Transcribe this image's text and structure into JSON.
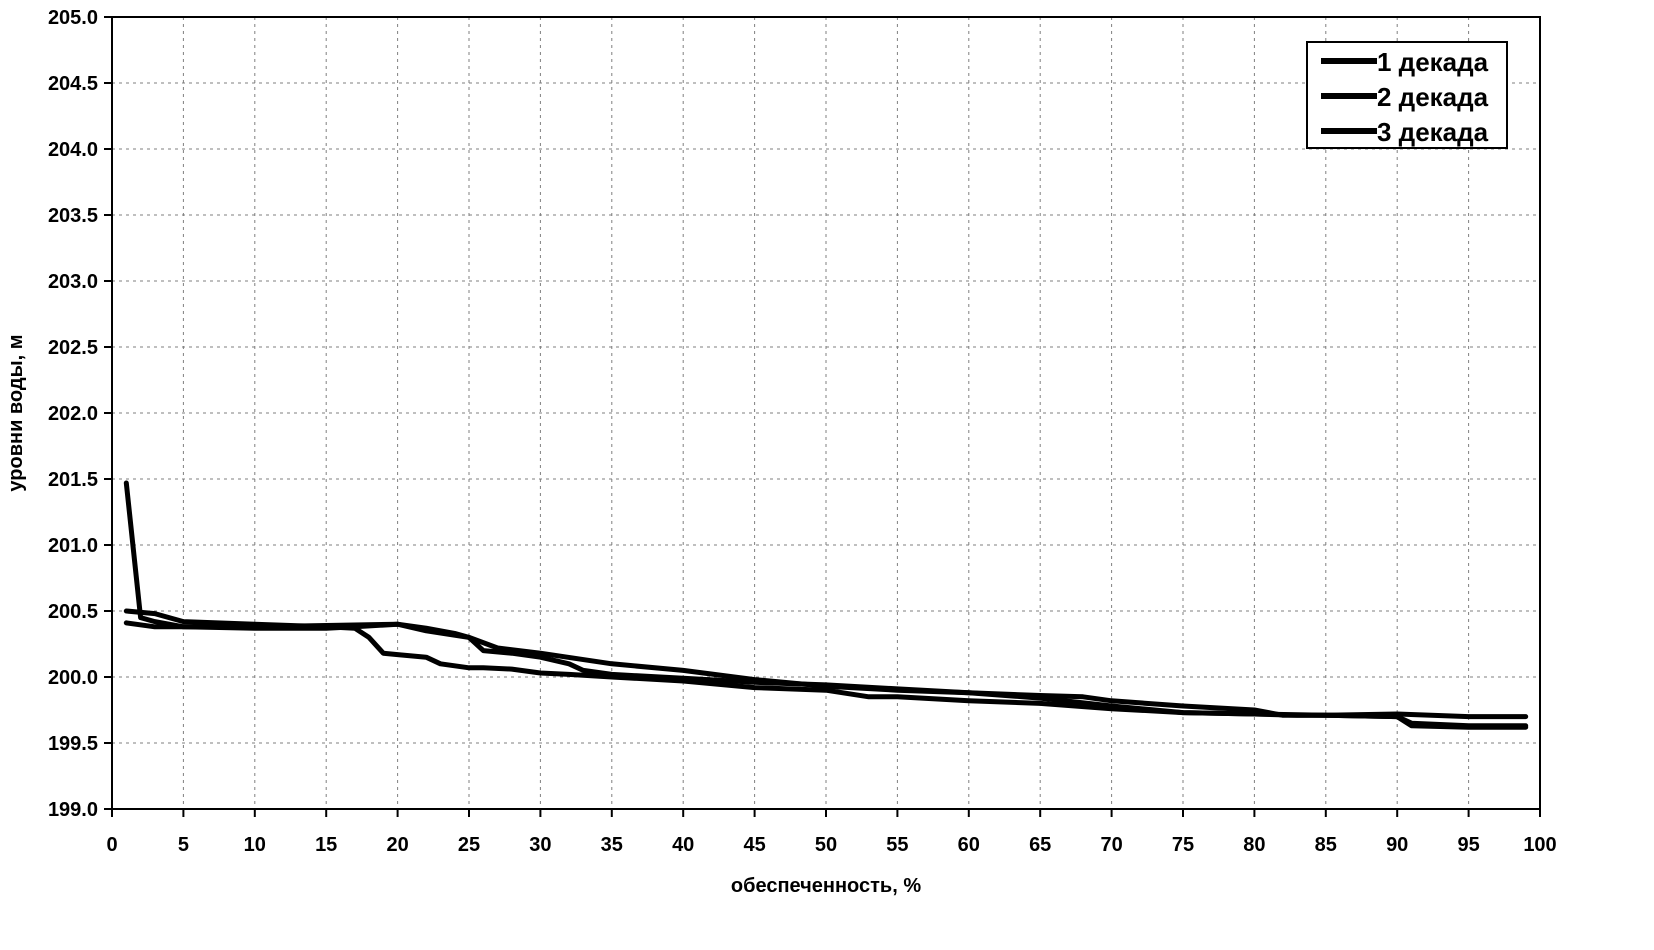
{
  "chart_data": {
    "type": "line",
    "xlabel": "обеспеченность, %",
    "ylabel": "уровни воды, м",
    "xlim": [
      0,
      100
    ],
    "ylim": [
      199.0,
      205.0
    ],
    "x_ticks": [
      "0",
      "5",
      "10",
      "15",
      "20",
      "25",
      "30",
      "35",
      "40",
      "45",
      "50",
      "55",
      "60",
      "65",
      "70",
      "75",
      "80",
      "85",
      "90",
      "95",
      "100"
    ],
    "y_ticks": [
      "199.0",
      "199.5",
      "200.0",
      "200.5",
      "201.0",
      "201.5",
      "202.0",
      "202.5",
      "203.0",
      "203.5",
      "204.0",
      "204.5",
      "205.0"
    ],
    "grid": true,
    "legend_position": "top-right",
    "series": [
      {
        "name": "1 декада",
        "x": [
          1,
          2,
          3,
          5,
          10,
          15,
          17,
          20,
          22,
          25,
          27,
          30,
          35,
          40,
          45,
          50,
          55,
          60,
          65,
          70,
          75,
          80,
          85,
          90,
          91,
          95,
          99
        ],
        "y": [
          201.47,
          200.45,
          200.42,
          200.38,
          200.37,
          200.37,
          200.38,
          200.4,
          200.35,
          200.3,
          200.22,
          200.18,
          200.1,
          200.05,
          199.98,
          199.93,
          199.9,
          199.88,
          199.84,
          199.78,
          199.73,
          199.72,
          199.71,
          199.7,
          199.63,
          199.62,
          199.62
        ]
      },
      {
        "name": "2 декада",
        "x": [
          1,
          3,
          5,
          10,
          15,
          17,
          18,
          19,
          20,
          22,
          23,
          25,
          26,
          28,
          30,
          32,
          35,
          40,
          45,
          50,
          53,
          55,
          60,
          65,
          70,
          75,
          80,
          83,
          85,
          90,
          95,
          99
        ],
        "y": [
          200.5,
          200.48,
          200.42,
          200.4,
          200.38,
          200.37,
          200.3,
          200.18,
          200.17,
          200.15,
          200.1,
          200.07,
          200.07,
          200.06,
          200.03,
          200.02,
          200.0,
          199.97,
          199.92,
          199.9,
          199.85,
          199.85,
          199.82,
          199.8,
          199.76,
          199.73,
          199.72,
          199.71,
          199.71,
          199.72,
          199.7,
          199.7
        ]
      },
      {
        "name": "3 декада",
        "x": [
          1,
          3,
          5,
          10,
          15,
          20,
          22,
          24,
          25,
          26,
          28,
          30,
          32,
          33,
          35,
          40,
          45,
          50,
          55,
          60,
          65,
          68,
          70,
          75,
          80,
          82,
          85,
          90,
          91,
          95,
          99
        ],
        "y": [
          200.41,
          200.38,
          200.38,
          200.38,
          200.39,
          200.4,
          200.37,
          200.33,
          200.3,
          200.2,
          200.18,
          200.15,
          200.1,
          200.05,
          200.02,
          199.99,
          199.96,
          199.94,
          199.91,
          199.88,
          199.86,
          199.85,
          199.82,
          199.78,
          199.75,
          199.71,
          199.71,
          199.7,
          199.65,
          199.63,
          199.63
        ]
      }
    ]
  },
  "colors": {
    "series": "#000000",
    "grid": "#7f7f7f",
    "axis": "#000000"
  }
}
